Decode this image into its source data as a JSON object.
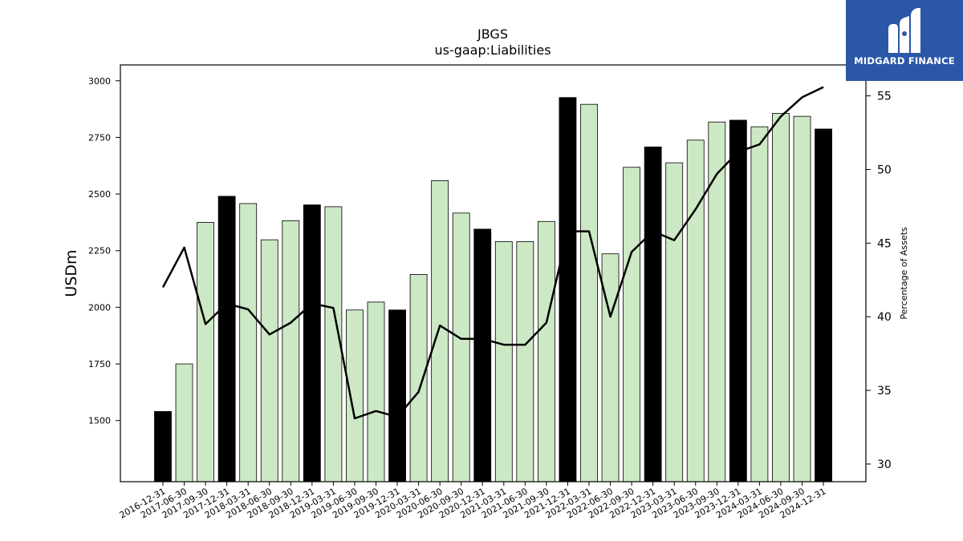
{
  "brand": {
    "name": "MIDGARD FINANCE",
    "logo_icon": "midgard-m-icon",
    "background": "#2b57a7"
  },
  "chart_data": {
    "type": "bar",
    "title": "JBGS",
    "subtitle": "us-gaap:Liabilities",
    "ylabel": "USDm",
    "y2label": "Percentage of Assets",
    "ylim": [
      1230,
      3070
    ],
    "y2lim": [
      28.8,
      57.1
    ],
    "yticks": [
      1500,
      1750,
      2000,
      2250,
      2500,
      2750,
      3000
    ],
    "y2ticks": [
      30,
      35,
      40,
      45,
      50,
      55
    ],
    "colors": {
      "annual_bar": "#000000",
      "quarter_bar": "#cce8c4",
      "line": "#000000"
    },
    "categories": [
      "2016-12-31",
      "2017-06-30",
      "2017-09-30",
      "2017-12-31",
      "2018-03-31",
      "2018-06-30",
      "2018-09-30",
      "2018-12-31",
      "2019-03-31",
      "2019-06-30",
      "2019-09-30",
      "2019-12-31",
      "2020-03-31",
      "2020-06-30",
      "2020-09-30",
      "2020-12-31",
      "2021-03-31",
      "2021-06-30",
      "2021-09-30",
      "2021-12-31",
      "2022-03-31",
      "2022-06-30",
      "2022-09-30",
      "2022-12-31",
      "2023-03-31",
      "2023-06-30",
      "2023-09-30",
      "2023-12-31",
      "2024-03-31",
      "2024-06-30",
      "2024-09-30",
      "2024-12-31"
    ],
    "series": [
      {
        "kind": "bar",
        "values": [
          1540,
          1750,
          2375,
          2490,
          2458,
          2298,
          2382,
          2452,
          2444,
          1988,
          2023,
          1988,
          2145,
          2559,
          2416,
          2345,
          2290,
          2290,
          2379,
          2926,
          2896,
          2236,
          2618,
          2708,
          2638,
          2738,
          2818,
          2826,
          2797,
          2856,
          2843,
          2787
        ],
        "annual": [
          true,
          false,
          false,
          true,
          false,
          false,
          false,
          true,
          false,
          false,
          false,
          true,
          false,
          false,
          false,
          true,
          false,
          false,
          false,
          true,
          false,
          false,
          false,
          true,
          false,
          false,
          false,
          true,
          false,
          false,
          false,
          true
        ]
      },
      {
        "kind": "line",
        "axis": "right",
        "values": [
          42.0,
          44.7,
          39.5,
          40.9,
          40.5,
          38.8,
          39.6,
          40.9,
          40.6,
          33.1,
          33.6,
          33.2,
          34.9,
          39.4,
          38.5,
          38.5,
          38.1,
          38.1,
          39.6,
          45.8,
          45.8,
          40.0,
          44.4,
          45.8,
          45.2,
          47.3,
          49.7,
          51.2,
          51.7,
          53.6,
          54.9,
          55.6
        ]
      }
    ]
  }
}
